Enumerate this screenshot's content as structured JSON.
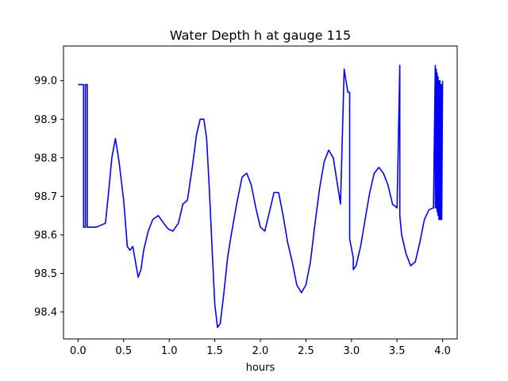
{
  "chart_data": {
    "type": "line",
    "title": "Water Depth h at gauge 115",
    "xlabel": "hours",
    "ylabel": "",
    "xlim": [
      -0.16,
      4.16
    ],
    "ylim": [
      98.33,
      99.09
    ],
    "xticks": [
      0.0,
      0.5,
      1.0,
      1.5,
      2.0,
      2.5,
      3.0,
      3.5,
      4.0
    ],
    "xtick_labels": [
      "0.0",
      "0.5",
      "1.0",
      "1.5",
      "2.0",
      "2.5",
      "3.0",
      "3.5",
      "4.0"
    ],
    "yticks": [
      98.4,
      98.5,
      98.6,
      98.7,
      98.8,
      98.9,
      99.0
    ],
    "ytick_labels": [
      "98.4",
      "98.5",
      "98.6",
      "98.7",
      "98.8",
      "98.9",
      "99.0"
    ],
    "grid": false,
    "series": [
      {
        "color": "#0000ff",
        "x": [
          0.0,
          0.06,
          0.06,
          0.08,
          0.08,
          0.1,
          0.1,
          0.12,
          0.12,
          0.2,
          0.3,
          0.33,
          0.37,
          0.41,
          0.45,
          0.5,
          0.54,
          0.57,
          0.6,
          0.63,
          0.66,
          0.69,
          0.72,
          0.77,
          0.82,
          0.88,
          0.94,
          0.99,
          1.04,
          1.1,
          1.15,
          1.2,
          1.25,
          1.3,
          1.34,
          1.38,
          1.41,
          1.44,
          1.47,
          1.5,
          1.53,
          1.56,
          1.6,
          1.64,
          1.68,
          1.74,
          1.8,
          1.85,
          1.9,
          1.95,
          2.0,
          2.05,
          2.1,
          2.15,
          2.2,
          2.25,
          2.3,
          2.35,
          2.4,
          2.45,
          2.5,
          2.55,
          2.6,
          2.65,
          2.7,
          2.75,
          2.8,
          2.84,
          2.88,
          2.92,
          2.96,
          2.98,
          2.98,
          3.02,
          3.02,
          3.05,
          3.1,
          3.15,
          3.2,
          3.25,
          3.3,
          3.35,
          3.4,
          3.45,
          3.5,
          3.53,
          3.53,
          3.55,
          3.6,
          3.65,
          3.7,
          3.75,
          3.8,
          3.85,
          3.9,
          3.92,
          3.92,
          3.93,
          3.93,
          3.94,
          3.94,
          3.95,
          3.95,
          3.96,
          3.96,
          3.97,
          3.97,
          3.98,
          3.98,
          3.99,
          3.99,
          4.0
        ],
        "y": [
          98.99,
          98.99,
          98.62,
          98.62,
          98.99,
          98.99,
          98.62,
          98.62,
          98.62,
          98.62,
          98.63,
          98.7,
          98.8,
          98.85,
          98.79,
          98.69,
          98.57,
          98.56,
          98.57,
          98.53,
          98.49,
          98.51,
          98.56,
          98.61,
          98.64,
          98.65,
          98.63,
          98.615,
          98.61,
          98.63,
          98.68,
          98.69,
          98.77,
          98.86,
          98.9,
          98.9,
          98.85,
          98.72,
          98.57,
          98.42,
          98.36,
          98.37,
          98.45,
          98.54,
          98.6,
          98.68,
          98.75,
          98.76,
          98.73,
          98.67,
          98.62,
          98.61,
          98.66,
          98.71,
          98.71,
          98.65,
          98.58,
          98.53,
          98.47,
          98.45,
          98.47,
          98.53,
          98.63,
          98.72,
          98.79,
          98.82,
          98.8,
          98.74,
          98.68,
          99.03,
          98.97,
          98.97,
          98.59,
          98.54,
          98.51,
          98.52,
          98.57,
          98.64,
          98.71,
          98.76,
          98.775,
          98.76,
          98.73,
          98.68,
          98.67,
          99.04,
          98.65,
          98.6,
          98.55,
          98.52,
          98.53,
          98.58,
          98.64,
          98.665,
          98.67,
          99.04,
          98.67,
          99.03,
          98.67,
          99.02,
          98.66,
          99.01,
          98.65,
          99.0,
          98.64,
          99.0,
          98.64,
          98.99,
          98.64,
          98.99,
          98.64,
          99.0
        ]
      }
    ]
  }
}
